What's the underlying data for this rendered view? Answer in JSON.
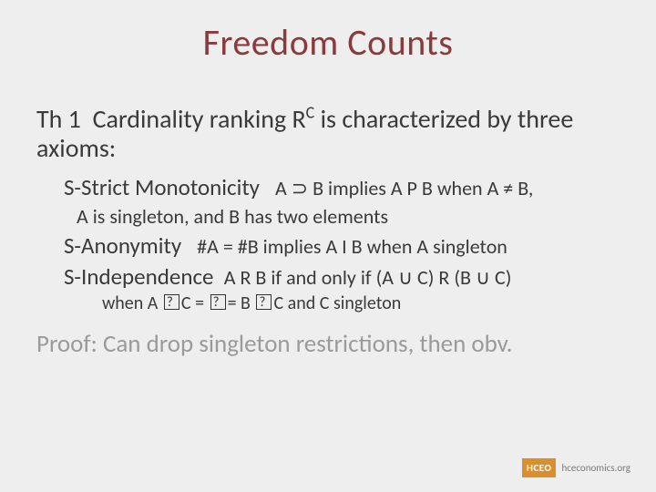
{
  "title": "Freedom Counts",
  "theorem": {
    "label": "Th 1",
    "text_before_sup": "Cardinality ranking R",
    "sup": "C",
    "text_after_sup": " is characterized by three axioms:"
  },
  "axioms": {
    "mono": {
      "name": "S-Strict Monotonicity",
      "detail_pre": "A ",
      "sym1": "⊃",
      "detail_mid": " B implies A P B   when A ≠ B,",
      "sub": "A is singleton, and B has two elements"
    },
    "anon": {
      "name": "S-Anonymity",
      "detail": "#A = #B implies A I B   when A singleton"
    },
    "indep": {
      "name": "S-Independence",
      "detail_pre": "A R B if and only if (A ",
      "sym1": "∪",
      "detail_mid": " C) R (B ",
      "sym2": "∪",
      "detail_post": " C)",
      "sub_pre": "when A ",
      "sub_mid1": "C = ",
      "sub_mid2": "= B ",
      "sub_post": "C and C singleton"
    }
  },
  "proof": "Proof: Can drop singleton restrictions, then obv.",
  "footer": {
    "box": "HCEO",
    "url": "hceconomics.org"
  },
  "colors": {
    "title": "#8a3a3a",
    "body": "#3a3a3a",
    "proof": "#9a9a9a",
    "bg": "#eeeeee",
    "hceo_box_bg": "#d98f2e",
    "hceo_box_fg": "#ffffff",
    "hceo_url": "#7a7a7a"
  }
}
